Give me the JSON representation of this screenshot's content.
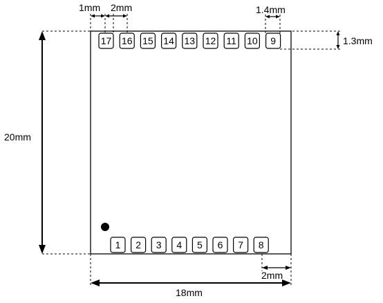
{
  "pins_top": [
    "17",
    "16",
    "15",
    "14",
    "13",
    "12",
    "11",
    "10",
    "9"
  ],
  "pins_bottom": [
    "1",
    "2",
    "3",
    "4",
    "5",
    "6",
    "7",
    "8"
  ],
  "dimensions": {
    "pin_gap": "1mm",
    "pin_pitch": "2mm",
    "pin_width": "1.4mm",
    "pin_height": "1.3mm",
    "module_height": "20mm",
    "module_width": "18mm",
    "edge_offset": "2mm"
  }
}
